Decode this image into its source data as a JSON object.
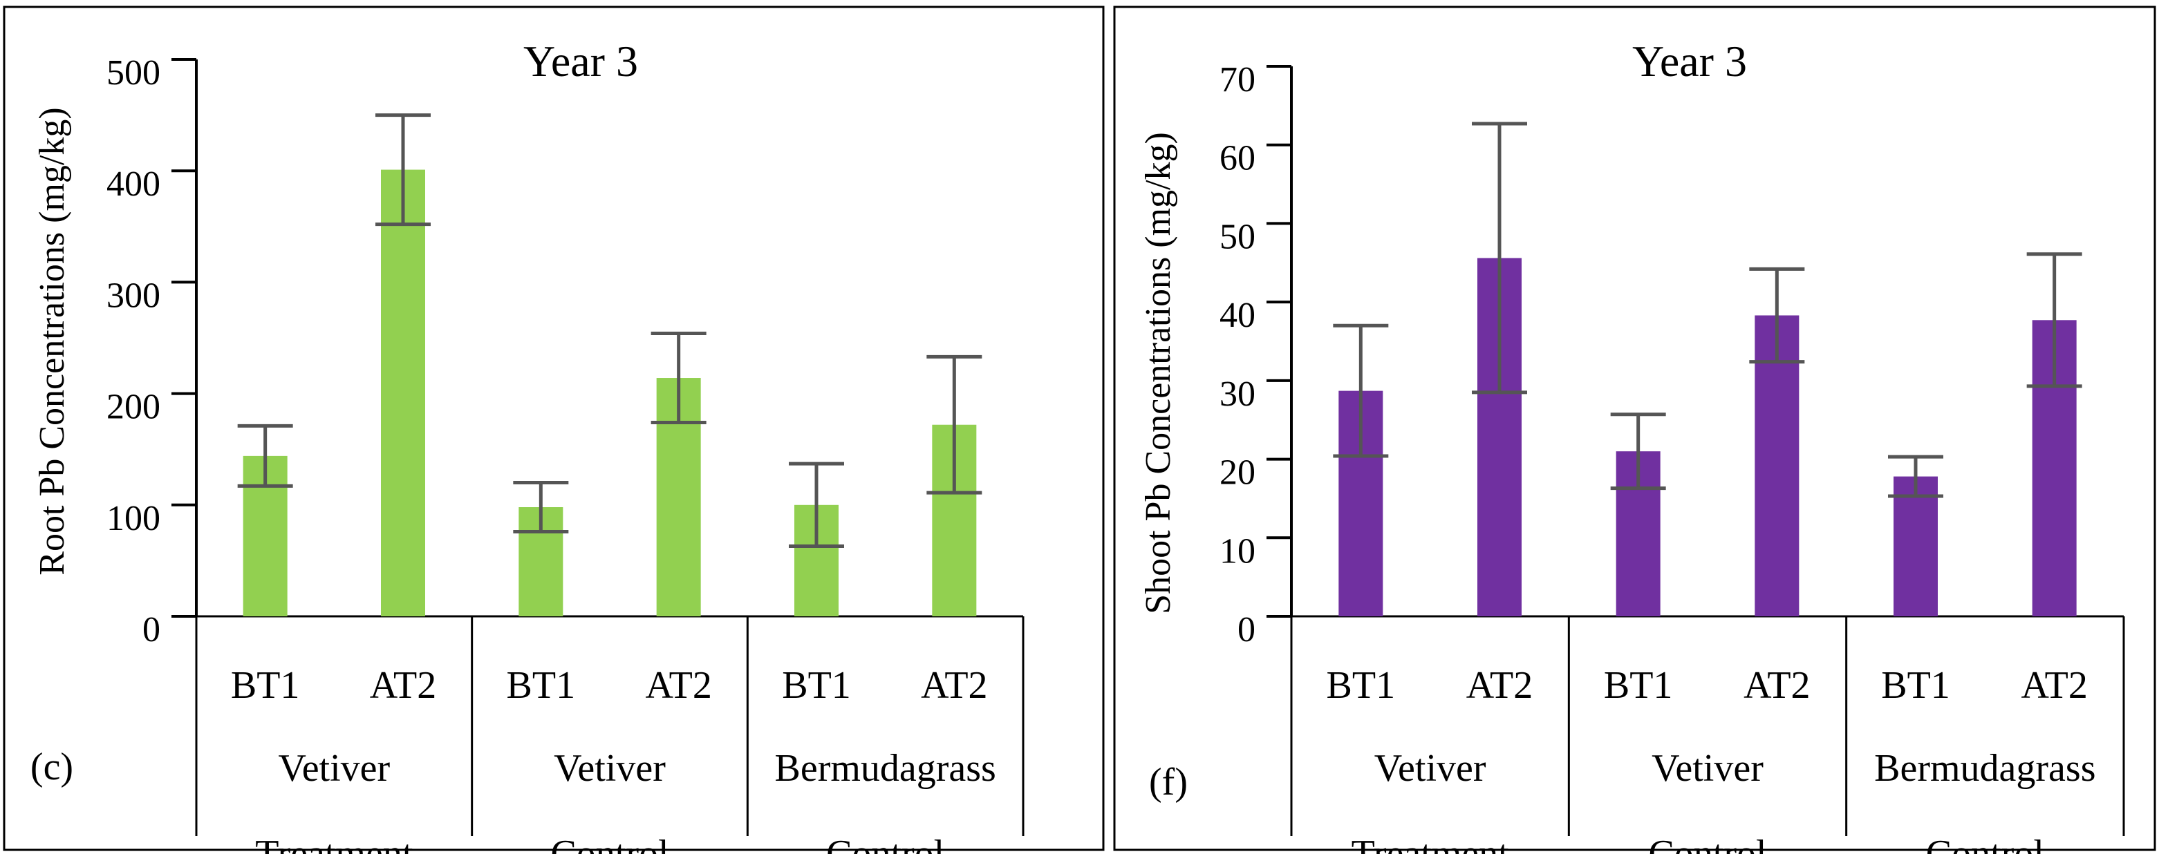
{
  "chart_data": [
    {
      "type": "bar",
      "panel_label": "(c)",
      "title": "Year 3",
      "ylabel": "Root Pb Concentrations (mg/kg)",
      "xlabel": "",
      "ylim": [
        0,
        500
      ],
      "yticks": [
        0,
        100,
        200,
        300,
        400,
        500
      ],
      "grid": false,
      "categories": [
        "BT1",
        "AT2",
        "BT1",
        "AT2",
        "BT1",
        "AT2"
      ],
      "groups": [
        {
          "label_lines": [
            "Vetiver",
            "Treatment"
          ]
        },
        {
          "label_lines": [
            "Vetiver",
            "Control"
          ]
        },
        {
          "label_lines": [
            "Bermudagrass",
            "Control"
          ]
        }
      ],
      "values": [
        144,
        401,
        98,
        214,
        100,
        172
      ],
      "errors": [
        27,
        49,
        22,
        40,
        37,
        61
      ],
      "bar_color": "#92d050",
      "error_color": "#555555"
    },
    {
      "type": "bar",
      "panel_label": "(f)",
      "title": "Year 3",
      "ylabel": "Shoot Pb Concentrations (mg/kg)",
      "xlabel": "",
      "ylim": [
        0,
        70
      ],
      "yticks": [
        0,
        10,
        20,
        30,
        40,
        50,
        60,
        70
      ],
      "grid": false,
      "categories": [
        "BT1",
        "AT2",
        "BT1",
        "AT2",
        "BT1",
        "AT2"
      ],
      "groups": [
        {
          "label_lines": [
            "Vetiver",
            "Treatment"
          ]
        },
        {
          "label_lines": [
            "Vetiver",
            "Control"
          ]
        },
        {
          "label_lines": [
            "Bermudagrass",
            "Control"
          ]
        }
      ],
      "values": [
        28.7,
        45.6,
        21.0,
        38.3,
        17.8,
        37.7
      ],
      "errors": [
        8.3,
        17.1,
        4.7,
        5.9,
        2.5,
        8.4
      ],
      "bar_color": "#7030a0",
      "error_color": "#555555"
    }
  ]
}
